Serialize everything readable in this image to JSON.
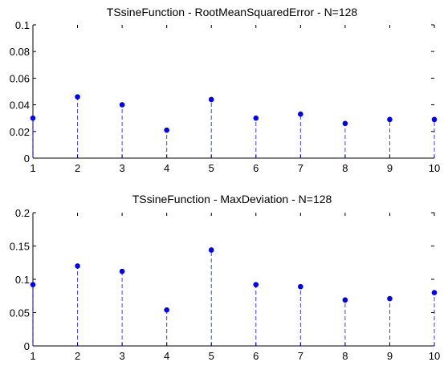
{
  "chart_data": [
    {
      "type": "stem",
      "title": "TSsineFunction - RootMeanSquaredError - N=128",
      "x": [
        1,
        2,
        3,
        4,
        5,
        6,
        7,
        8,
        9,
        10
      ],
      "values": [
        0.03,
        0.046,
        0.04,
        0.021,
        0.044,
        0.03,
        0.033,
        0.026,
        0.029,
        0.029
      ],
      "xlim": [
        1,
        10
      ],
      "ylim": [
        0,
        0.1
      ],
      "xticks": [
        "1",
        "2",
        "3",
        "4",
        "5",
        "6",
        "7",
        "8",
        "9",
        "10"
      ],
      "yticks": [
        "0",
        "0.02",
        "0.04",
        "0.06",
        "0.08",
        "0.1"
      ],
      "xlabel": "",
      "ylabel": "",
      "grid": false,
      "marker_color": "#0000ee",
      "stem_color": "#0000ee"
    },
    {
      "type": "stem",
      "title": "TSsineFunction - MaxDeviation - N=128",
      "x": [
        1,
        2,
        3,
        4,
        5,
        6,
        7,
        8,
        9,
        10
      ],
      "values": [
        0.092,
        0.12,
        0.112,
        0.054,
        0.144,
        0.092,
        0.089,
        0.069,
        0.071,
        0.08
      ],
      "xlim": [
        1,
        10
      ],
      "ylim": [
        0,
        0.2
      ],
      "xticks": [
        "1",
        "2",
        "3",
        "4",
        "5",
        "6",
        "7",
        "8",
        "9",
        "10"
      ],
      "yticks": [
        "0",
        "0.05",
        "0.1",
        "0.15",
        "0.2"
      ],
      "xlabel": "",
      "ylabel": "",
      "grid": false,
      "marker_color": "#0000ee",
      "stem_color": "#0000ee"
    }
  ]
}
